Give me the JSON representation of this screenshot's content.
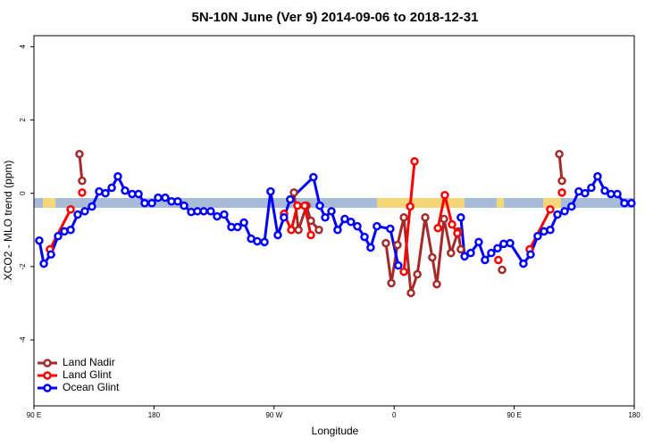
{
  "chart_data": {
    "type": "line",
    "title": "5N-10N June (Ver 9)   2014-09-06 to 2018-12-31",
    "xlabel": "Longitude",
    "ylabel": "XCO2 - MLO trend (ppm)",
    "xlim": [
      90,
      540
    ],
    "ylim": [
      -5.8,
      4.3
    ],
    "xticks": [
      {
        "value": 90,
        "label": "90 E"
      },
      180,
      {
        "value": 270,
        "label": "90 W"
      },
      {
        "value": 360,
        "label": "0"
      },
      {
        "value": 450,
        "label": "90 E"
      },
      {
        "value": 540,
        "label": "180"
      }
    ],
    "yticks": [
      -4,
      -2,
      0,
      2,
      4
    ],
    "legend": "bottomleft",
    "series": [
      {
        "name": "Land Nadir",
        "color": "#a52a2a",
        "x": [
          124.1,
          126.1,
          null,
          284.9,
          288.3,
          294.3,
          297.6,
          303.6,
          null,
          353.8,
          357.9,
          362.5,
          367.3,
          372.6,
          377.4,
          383.3,
          388.6,
          392,
          397.4,
          402.6,
          408,
          410,
          null,
          440.9,
          null,
          483.8,
          485.8
        ],
        "values": [
          1.07,
          0.34,
          null,
          0.02,
          -1.0,
          -0.34,
          -0.75,
          -1.0,
          null,
          -1.36,
          -2.45,
          -1.41,
          -0.66,
          -2.72,
          -2.21,
          -0.66,
          -1.75,
          -2.48,
          -0.7,
          -1.63,
          -1.04,
          -1.53,
          null,
          -2.09,
          null,
          1.07,
          0.34
        ]
      },
      {
        "name": "Land Glint",
        "color": "#ff0000",
        "x": [
          102,
          117.5,
          null,
          126.1,
          null,
          277.5,
          282.9,
          287.5,
          292.9,
          297.6,
          null,
          367.3,
          372,
          375.3,
          null,
          392.8,
          398,
          403.4,
          407.4,
          null,
          438.1,
          null,
          461.6,
          477,
          null,
          485.8
        ],
        "values": [
          -1.53,
          -0.44,
          null,
          0.02,
          null,
          -0.56,
          -1.0,
          -0.34,
          -0.34,
          -1.14,
          null,
          -2.14,
          -0.36,
          0.87,
          null,
          -0.95,
          -0.05,
          -0.85,
          -1.09,
          null,
          -1.82,
          null,
          -1.53,
          -0.44,
          null,
          0.02
        ]
      },
      {
        "name": "Ocean Glint",
        "color": "#0000ff",
        "x": [
          94,
          97.4,
          102.8,
          108.1,
          112.8,
          117.5,
          122.8,
          128.1,
          133.5,
          138.9,
          143.6,
          148.3,
          152.9,
          158.3,
          163.6,
          168.4,
          173,
          178.4,
          183.1,
          188.4,
          193.1,
          197.8,
          202.5,
          207.9,
          212.5,
          217.3,
          222.5,
          227.3,
          232.6,
          238,
          242.6,
          247.4,
          252.8,
          257.4,
          262.8,
          267.4,
          272.8,
          277.4,
          282.1,
          299.5,
          304.3,
          308.3,
          313,
          317.6,
          323,
          327.6,
          332.4,
          337.8,
          342.4,
          347.1,
          357.1,
          363.1,
          null,
          410,
          412.8,
          417.4,
          423.4,
          428.1,
          432.8,
          437.5,
          442.1,
          446.9,
          456.9,
          462.3,
          467.6,
          472.3,
          477,
          482.4,
          487.8,
          493,
          498.4,
          503.1,
          507.8,
          512.5,
          517.9,
          522.5,
          527.3,
          532.6,
          537.9
        ],
        "values": [
          -1.29,
          -1.92,
          -1.67,
          -1.17,
          -1.04,
          -1.0,
          -0.58,
          -0.49,
          -0.36,
          0.05,
          0,
          0.15,
          0.46,
          0.07,
          -0.02,
          -0.02,
          -0.27,
          -0.27,
          -0.12,
          -0.12,
          -0.22,
          -0.22,
          -0.34,
          -0.51,
          -0.49,
          -0.49,
          -0.49,
          -0.63,
          -0.58,
          -0.92,
          -0.92,
          -0.8,
          -1.24,
          -1.31,
          -1.33,
          0.05,
          -1.14,
          -0.66,
          -0.17,
          0.44,
          -0.34,
          -0.66,
          -0.49,
          -1.0,
          -0.7,
          -0.78,
          -0.9,
          -1.19,
          -1.48,
          -0.9,
          -0.97,
          -1.97,
          null,
          -0.66,
          -1.72,
          -1.63,
          -1.33,
          -1.82,
          -1.63,
          -1.5,
          -1.38,
          -1.36,
          -1.92,
          -1.67,
          -1.17,
          -1.04,
          -1.0,
          -0.58,
          -0.49,
          -0.36,
          0.05,
          0,
          0.15,
          0.46,
          0.07,
          -0.02,
          -0.02,
          -0.27,
          -0.27
        ]
      }
    ]
  }
}
